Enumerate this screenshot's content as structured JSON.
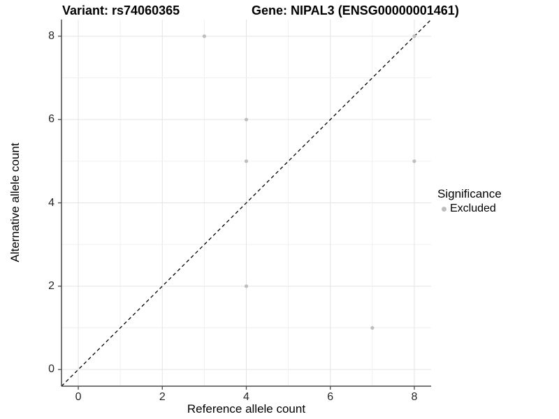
{
  "chart_data": {
    "type": "scatter",
    "title_left": "Variant: rs74060365",
    "title_right": "Gene: NIPAL3 (ENSG00000001461)",
    "xlabel": "Reference allele count",
    "ylabel": "Alternative allele count",
    "xlim": [
      -0.4,
      8.4
    ],
    "ylim": [
      -0.4,
      8.4
    ],
    "x_ticks": [
      0,
      2,
      4,
      6,
      8
    ],
    "y_ticks": [
      0,
      2,
      4,
      6,
      8
    ],
    "grid": true,
    "grid_every": 1,
    "identity_line": {
      "style": "dashed",
      "from": [
        -0.4,
        -0.4
      ],
      "to": [
        8.4,
        8.4
      ]
    },
    "series": [
      {
        "name": "Excluded",
        "points": [
          [
            3,
            8
          ],
          [
            4,
            6
          ],
          [
            4,
            5
          ],
          [
            4,
            2
          ],
          [
            7,
            1
          ],
          [
            8,
            5
          ],
          [
            8,
            8
          ]
        ]
      }
    ],
    "legend": {
      "title": "Significance",
      "position": "right",
      "items": [
        {
          "label": "Excluded",
          "marker": "dot-icon"
        }
      ]
    }
  },
  "colors": {
    "background": "#ffffff",
    "grid_major": "#e3e3e3",
    "grid_minor": "#f0f0f0",
    "axis_line": "#4a4a4a",
    "identity_line": "#000000",
    "point": "#bebebe",
    "tick_label": "#262626",
    "text": "#000000"
  }
}
